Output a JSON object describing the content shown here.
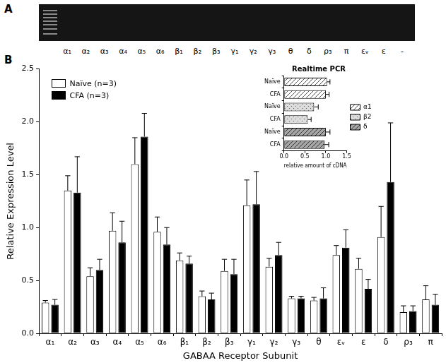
{
  "panel_labels": [
    "A",
    "B"
  ],
  "gel": {
    "lanes": [
      "α₁",
      "α₂",
      "α₃",
      "α₄",
      "α₅",
      "α₆",
      "β₁",
      "β₂",
      "β₃",
      "γ₁",
      "γ₂",
      "γ₃",
      "θ",
      "δ",
      "ρ₃",
      "π",
      "εᵥ",
      "ε",
      "-"
    ]
  },
  "chart_data": [
    {
      "type": "bar",
      "categories": [
        "α₁",
        "α₂",
        "α₃",
        "α₄",
        "α₅",
        "α₆",
        "β₁",
        "β₂",
        "β₃",
        "γ₁",
        "γ₂",
        "γ₃",
        "θ",
        "εᵥ",
        "ε",
        "δ",
        "ρ₃",
        "π"
      ],
      "series": [
        {
          "name": "Naïve (n=3)",
          "color": "#ffffff",
          "values": [
            0.29,
            1.35,
            0.54,
            0.97,
            1.6,
            0.96,
            0.69,
            0.35,
            0.59,
            1.21,
            0.63,
            0.33,
            0.31,
            0.74,
            0.61,
            0.91,
            0.2,
            0.32
          ],
          "errors": [
            0.02,
            0.14,
            0.08,
            0.17,
            0.25,
            0.14,
            0.07,
            0.05,
            0.11,
            0.24,
            0.08,
            0.02,
            0.03,
            0.09,
            0.1,
            0.29,
            0.06,
            0.13
          ]
        },
        {
          "name": "CFA (n=3)",
          "color": "#000000",
          "values": [
            0.27,
            1.33,
            0.6,
            0.86,
            1.86,
            0.84,
            0.66,
            0.32,
            0.56,
            1.22,
            0.74,
            0.33,
            0.33,
            0.81,
            0.42,
            1.43,
            0.21,
            0.27
          ],
          "errors": [
            0.05,
            0.34,
            0.1,
            0.2,
            0.22,
            0.16,
            0.07,
            0.06,
            0.14,
            0.31,
            0.12,
            0.02,
            0.1,
            0.17,
            0.09,
            0.56,
            0.05,
            0.1
          ]
        }
      ],
      "x_label": "GABAA Receptor Subunit",
      "y_label": "Relative Expression Level",
      "ylim": [
        0,
        2.5
      ],
      "yticks": [
        {
          "value": 0,
          "label": "0.0"
        },
        0.5,
        {
          "value": 1,
          "label": "1.0"
        },
        1.5,
        {
          "value": 2,
          "label": "2.0"
        },
        2.5
      ],
      "grid": false,
      "legend": "upper left"
    },
    {
      "type": "bar",
      "orientation": "horizontal",
      "title": "Realtime PCR",
      "categories": [
        "Naïve",
        "CFA",
        "Naïve",
        "CFA",
        "Naïve",
        "CFA"
      ],
      "series": [
        {
          "name": "α1",
          "color": "#ffffff",
          "values": [
            1.03,
            1.0,
            null,
            null,
            null,
            null
          ],
          "errors": [
            0.07,
            0.08,
            null,
            null,
            null,
            null
          ]
        },
        {
          "name": "β2",
          "color": "#dcdcdc",
          "values": [
            null,
            null,
            0.72,
            0.57,
            null,
            null
          ],
          "errors": [
            null,
            null,
            0.1,
            0.08,
            null,
            null
          ]
        },
        {
          "name": "δ",
          "color": "#a6a6a6",
          "values": [
            null,
            null,
            null,
            null,
            1.0,
            0.97
          ],
          "errors": [
            null,
            null,
            null,
            null,
            0.1,
            0.1
          ]
        }
      ],
      "x_label": "relative amount of cDNA",
      "xlim": [
        0,
        1.5
      ],
      "xticks": [
        {
          "value": 0,
          "label": "0.0"
        },
        0.5,
        {
          "value": 1,
          "label": "1.0"
        },
        1.5
      ],
      "grid": false,
      "legend": "right"
    }
  ]
}
